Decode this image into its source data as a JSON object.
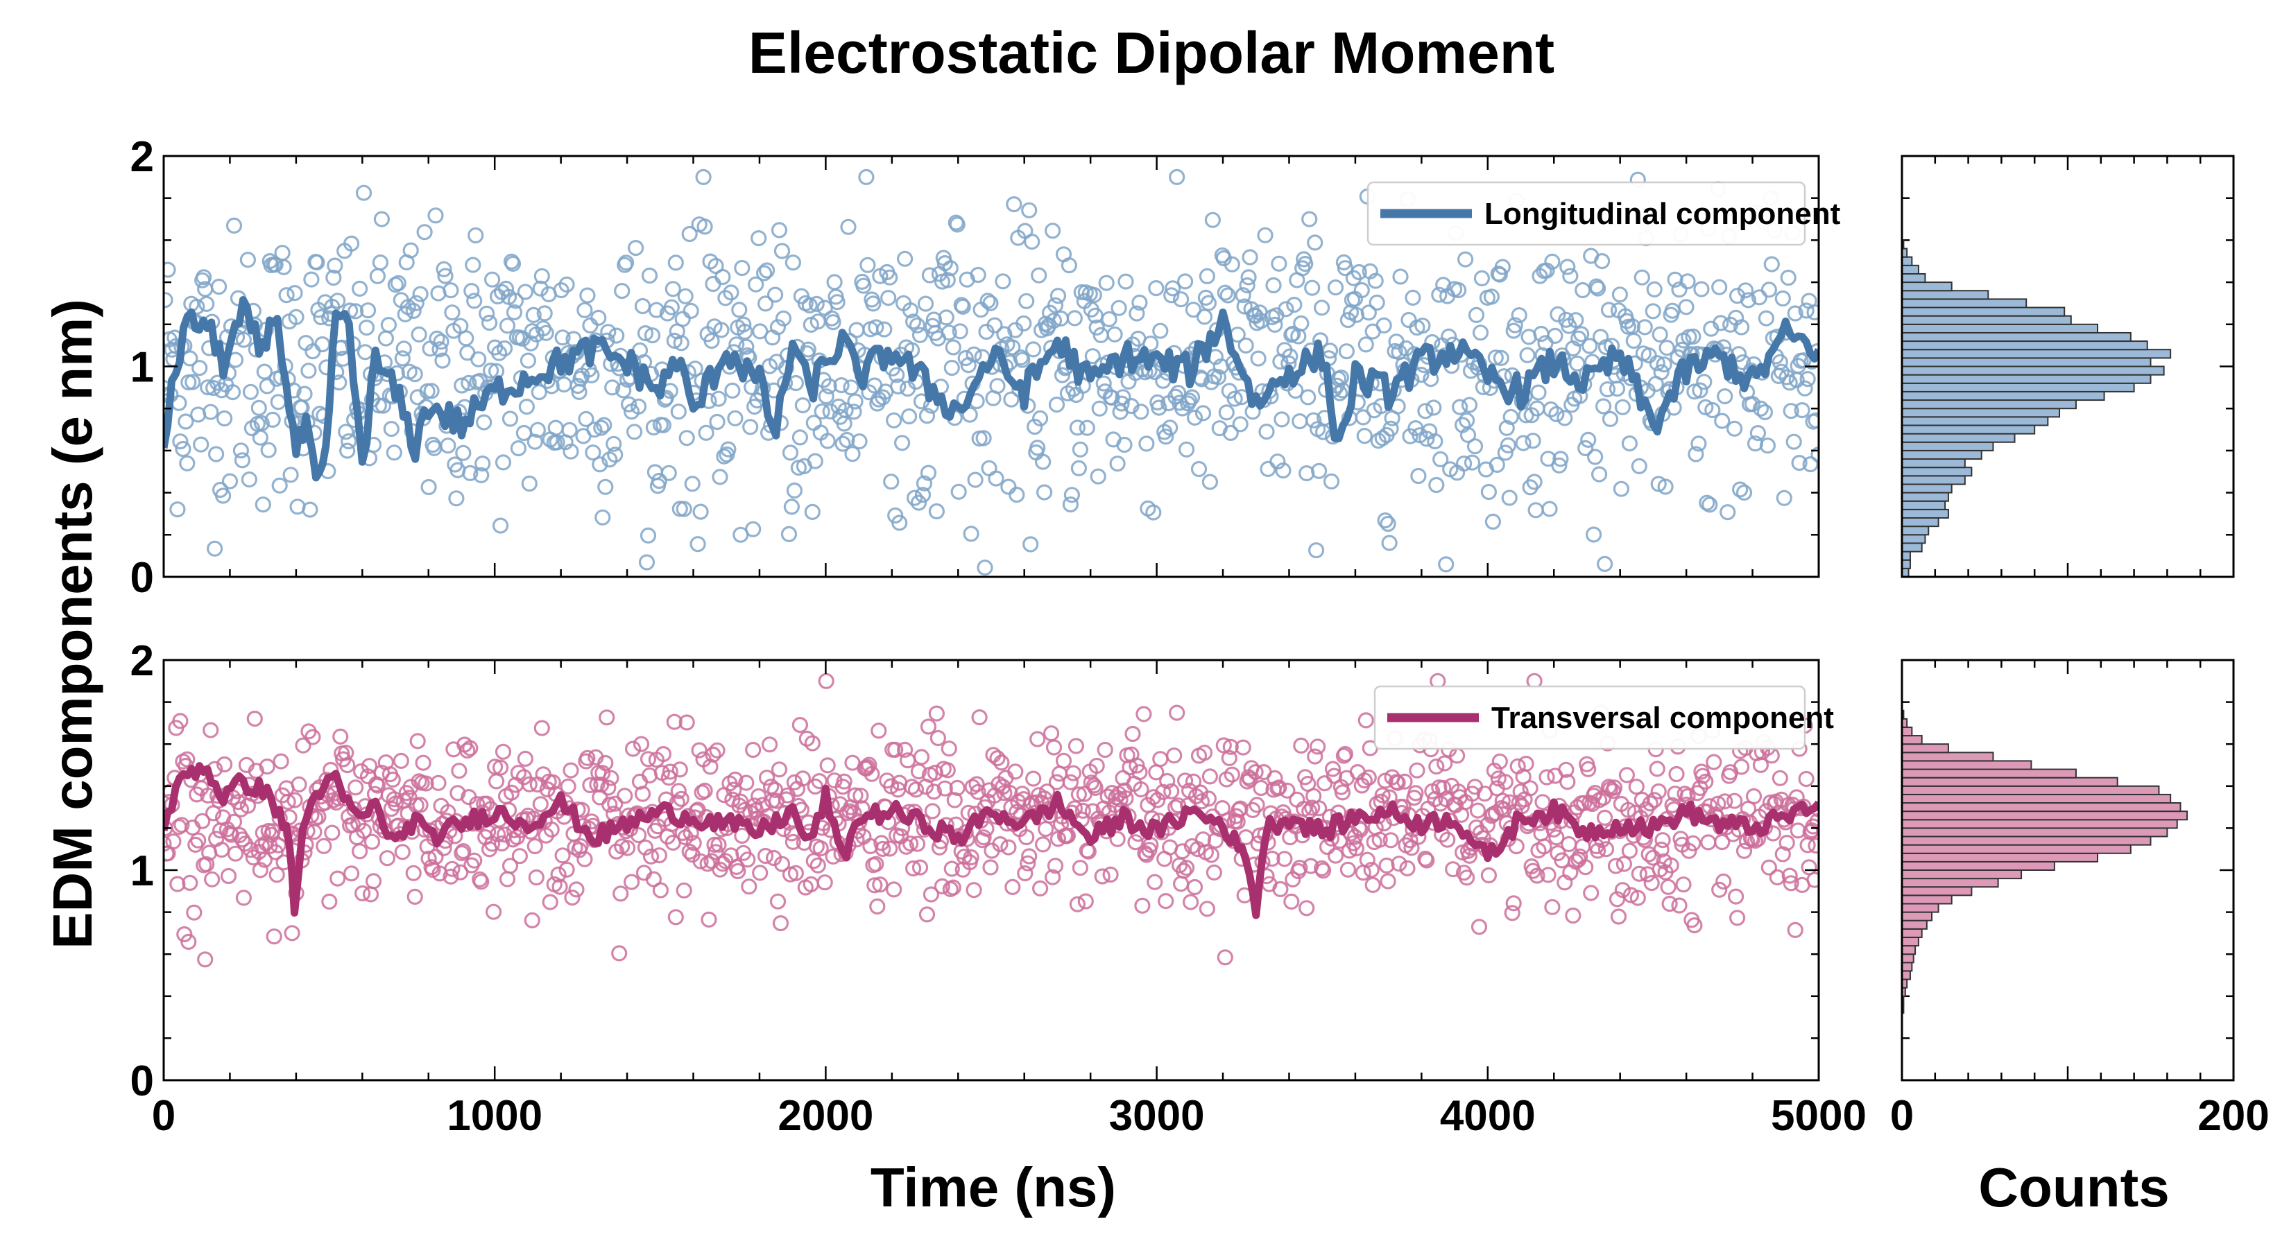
{
  "chart_data": {
    "type": "scatter",
    "title": "Electrostatic Dipolar Moment",
    "ylabel": "EDM components (e nm)",
    "xlabel": "Time (ns)",
    "hist_xlabel": "Counts",
    "xlim": [
      0,
      5000
    ],
    "ylim": [
      0,
      2
    ],
    "hist_xlim": [
      0,
      200
    ],
    "x_ticks": [
      "0",
      "1000",
      "2000",
      "3000",
      "4000",
      "5000"
    ],
    "y_ticks": [
      "0",
      "1",
      "2"
    ],
    "hist_ticks": [
      "0",
      "200"
    ],
    "panels": [
      {
        "name": "longitudinal",
        "legend": "Longitudinal component",
        "color": "#4577a8",
        "scatter_color": "#7fa4c8",
        "hist_fill": "#9cbad8",
        "mean": 1.0,
        "scatter_sd": 0.33,
        "running_mean": [
          [
            0,
            0.65
          ],
          [
            60,
            1.18
          ],
          [
            120,
            1.22
          ],
          [
            180,
            1.02
          ],
          [
            240,
            1.25
          ],
          [
            300,
            1.05
          ],
          [
            330,
            1.28
          ],
          [
            370,
            0.95
          ],
          [
            400,
            0.58
          ],
          [
            430,
            0.72
          ],
          [
            460,
            0.42
          ],
          [
            490,
            0.55
          ],
          [
            520,
            1.28
          ],
          [
            560,
            1.15
          ],
          [
            600,
            0.55
          ],
          [
            640,
            1.02
          ],
          [
            700,
            0.88
          ],
          [
            760,
            0.62
          ],
          [
            800,
            0.82
          ],
          [
            900,
            0.72
          ],
          [
            1000,
            0.88
          ],
          [
            1100,
            0.95
          ],
          [
            1200,
            1.02
          ],
          [
            1300,
            1.08
          ],
          [
            1400,
            1.02
          ],
          [
            1500,
            0.88
          ],
          [
            1550,
            1.05
          ],
          [
            1600,
            0.78
          ],
          [
            1700,
            1.08
          ],
          [
            1800,
            0.92
          ],
          [
            1850,
            0.68
          ],
          [
            1900,
            1.12
          ],
          [
            1950,
            0.88
          ],
          [
            2000,
            1.02
          ],
          [
            2050,
            1.12
          ],
          [
            2100,
            0.95
          ],
          [
            2200,
            1.08
          ],
          [
            2300,
            0.92
          ],
          [
            2400,
            0.78
          ],
          [
            2500,
            1.05
          ],
          [
            2600,
            0.88
          ],
          [
            2700,
            1.12
          ],
          [
            2800,
            0.92
          ],
          [
            2900,
            1.05
          ],
          [
            3000,
            1.02
          ],
          [
            3100,
            0.98
          ],
          [
            3200,
            1.22
          ],
          [
            3300,
            0.82
          ],
          [
            3400,
            0.98
          ],
          [
            3500,
            1.05
          ],
          [
            3550,
            0.62
          ],
          [
            3600,
            0.95
          ],
          [
            3700,
            0.88
          ],
          [
            3800,
            1.02
          ],
          [
            3900,
            1.08
          ],
          [
            4000,
            0.95
          ],
          [
            4100,
            0.88
          ],
          [
            4200,
            1.02
          ],
          [
            4300,
            0.92
          ],
          [
            4400,
            1.05
          ],
          [
            4500,
            0.72
          ],
          [
            4600,
            0.98
          ],
          [
            4700,
            1.05
          ],
          [
            4800,
            0.92
          ],
          [
            4900,
            1.15
          ],
          [
            5000,
            1.08
          ]
        ],
        "hist_bins": [
          0.0,
          0.04,
          0.08,
          0.12,
          0.16,
          0.2,
          0.24,
          0.28,
          0.32,
          0.36,
          0.4,
          0.44,
          0.48,
          0.52,
          0.56,
          0.6,
          0.64,
          0.68,
          0.72,
          0.76,
          0.8,
          0.84,
          0.88,
          0.92,
          0.96,
          1.0,
          1.04,
          1.08,
          1.12,
          1.16,
          1.2,
          1.24,
          1.28,
          1.32,
          1.36,
          1.4,
          1.44,
          1.48,
          1.52,
          1.56
        ],
        "hist_counts": [
          4,
          5,
          5,
          12,
          14,
          16,
          22,
          28,
          26,
          28,
          30,
          38,
          42,
          38,
          48,
          55,
          68,
          80,
          88,
          95,
          105,
          122,
          140,
          150,
          158,
          150,
          162,
          148,
          138,
          118,
          102,
          98,
          75,
          52,
          30,
          14,
          10,
          6,
          3,
          1
        ]
      },
      {
        "name": "transversal",
        "legend": "Transversal component",
        "color": "#a8306e",
        "scatter_color": "#cc6f9b",
        "hist_fill": "#dd9ab8",
        "mean": 1.25,
        "scatter_sd": 0.2,
        "running_mean": [
          [
            0,
            1.22
          ],
          [
            60,
            1.45
          ],
          [
            120,
            1.5
          ],
          [
            180,
            1.35
          ],
          [
            240,
            1.42
          ],
          [
            300,
            1.38
          ],
          [
            350,
            1.28
          ],
          [
            380,
            1.12
          ],
          [
            395,
            0.82
          ],
          [
            420,
            1.18
          ],
          [
            460,
            1.38
          ],
          [
            520,
            1.42
          ],
          [
            580,
            1.25
          ],
          [
            640,
            1.3
          ],
          [
            700,
            1.12
          ],
          [
            760,
            1.25
          ],
          [
            800,
            1.15
          ],
          [
            900,
            1.22
          ],
          [
            1000,
            1.28
          ],
          [
            1100,
            1.22
          ],
          [
            1200,
            1.32
          ],
          [
            1300,
            1.15
          ],
          [
            1400,
            1.22
          ],
          [
            1500,
            1.28
          ],
          [
            1600,
            1.25
          ],
          [
            1700,
            1.22
          ],
          [
            1800,
            1.18
          ],
          [
            1900,
            1.28
          ],
          [
            1950,
            1.12
          ],
          [
            2000,
            1.35
          ],
          [
            2050,
            1.05
          ],
          [
            2100,
            1.25
          ],
          [
            2200,
            1.28
          ],
          [
            2300,
            1.22
          ],
          [
            2400,
            1.15
          ],
          [
            2500,
            1.28
          ],
          [
            2600,
            1.22
          ],
          [
            2700,
            1.32
          ],
          [
            2800,
            1.15
          ],
          [
            2900,
            1.25
          ],
          [
            3000,
            1.18
          ],
          [
            3100,
            1.28
          ],
          [
            3200,
            1.22
          ],
          [
            3280,
            1.02
          ],
          [
            3300,
            0.8
          ],
          [
            3330,
            1.2
          ],
          [
            3400,
            1.25
          ],
          [
            3500,
            1.18
          ],
          [
            3600,
            1.25
          ],
          [
            3700,
            1.28
          ],
          [
            3800,
            1.22
          ],
          [
            3900,
            1.25
          ],
          [
            4000,
            1.05
          ],
          [
            4100,
            1.25
          ],
          [
            4200,
            1.28
          ],
          [
            4300,
            1.18
          ],
          [
            4400,
            1.22
          ],
          [
            4500,
            1.2
          ],
          [
            4600,
            1.28
          ],
          [
            4700,
            1.22
          ],
          [
            4800,
            1.2
          ],
          [
            4900,
            1.25
          ],
          [
            5000,
            1.32
          ]
        ],
        "hist_bins": [
          0.0,
          0.04,
          0.08,
          0.12,
          0.16,
          0.2,
          0.24,
          0.28,
          0.32,
          0.36,
          0.4,
          0.44,
          0.48,
          0.52,
          0.56,
          0.6,
          0.64,
          0.68,
          0.72,
          0.76,
          0.8,
          0.84,
          0.88,
          0.92,
          0.96,
          1.0,
          1.04,
          1.08,
          1.12,
          1.16,
          1.2,
          1.24,
          1.28,
          1.32,
          1.36,
          1.4,
          1.44,
          1.48,
          1.52,
          1.56,
          1.6,
          1.64,
          1.68,
          1.72,
          1.76,
          1.8,
          1.84
        ],
        "hist_counts": [
          0,
          0,
          0,
          0,
          0,
          0,
          0,
          0,
          1,
          1,
          2,
          3,
          5,
          6,
          7,
          8,
          10,
          12,
          15,
          18,
          22,
          30,
          42,
          58,
          72,
          92,
          118,
          138,
          150,
          160,
          166,
          172,
          168,
          162,
          155,
          130,
          105,
          78,
          55,
          28,
          12,
          6,
          3,
          1,
          0,
          0,
          0
        ]
      }
    ]
  }
}
